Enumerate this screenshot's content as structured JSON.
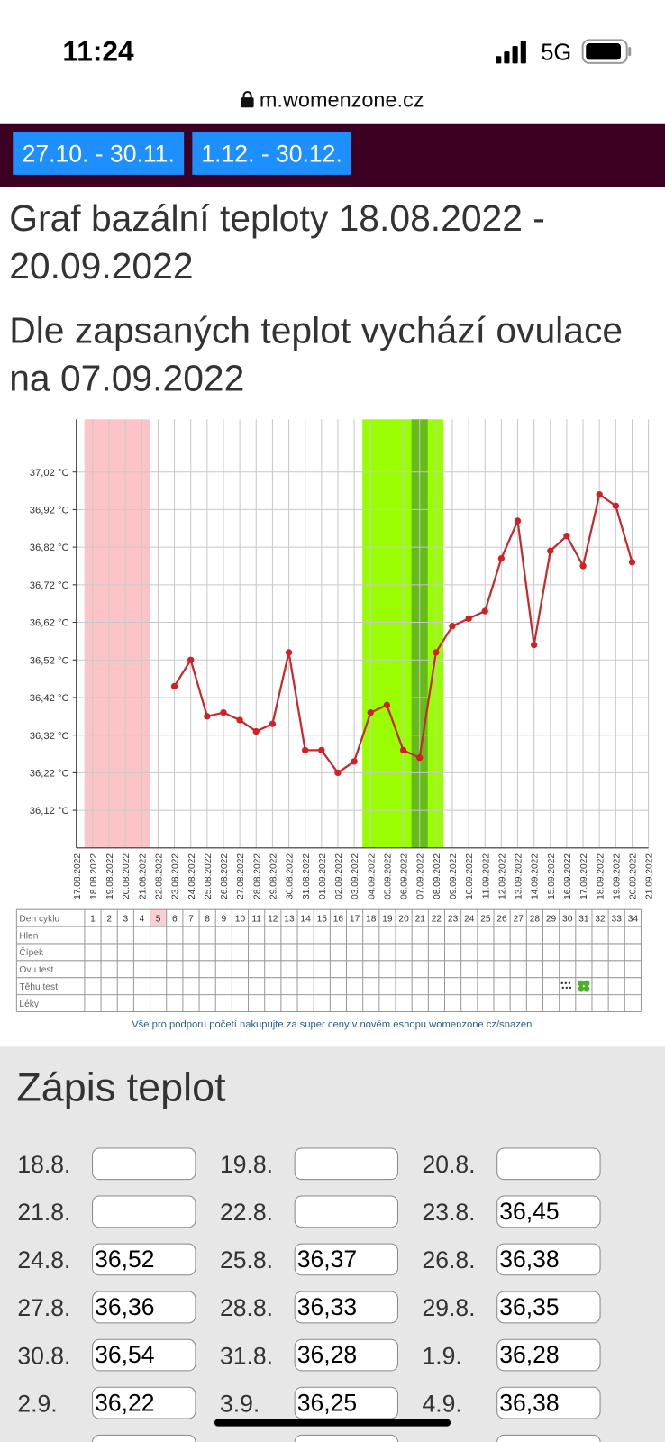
{
  "status": {
    "time": "11:24",
    "network": "5G"
  },
  "url": "m.womenzone.cz",
  "tabs": [
    "27.10. - 30.11.",
    "1.12. - 30.12."
  ],
  "title": "Graf bazální teploty 18.08.2022 - 20.09.2022",
  "subtitle": "Dle zapsaných teplot vychází ovulace na 07.09.2022",
  "chart_data": {
    "type": "line",
    "categories": [
      "17.08.2022",
      "18.08.2022",
      "19.08.2022",
      "20.08.2022",
      "21.08.2022",
      "22.08.2022",
      "23.08.2022",
      "24.08.2022",
      "25.08.2022",
      "26.08.2022",
      "27.08.2022",
      "28.08.2022",
      "29.08.2022",
      "30.08.2022",
      "31.08.2022",
      "01.09.2022",
      "02.09.2022",
      "03.09.2022",
      "04.09.2022",
      "05.09.2022",
      "06.09.2022",
      "07.09.2022",
      "08.09.2022",
      "09.09.2022",
      "10.09.2022",
      "11.09.2022",
      "12.09.2022",
      "13.09.2022",
      "14.09.2022",
      "15.09.2022",
      "16.09.2022",
      "17.09.2022",
      "18.09.2022",
      "19.09.2022",
      "20.09.2022",
      "21.09.2022"
    ],
    "values": [
      null,
      null,
      null,
      null,
      null,
      null,
      36.45,
      36.52,
      36.37,
      36.38,
      36.36,
      36.33,
      36.35,
      36.54,
      36.28,
      36.28,
      36.22,
      36.25,
      36.38,
      36.4,
      36.28,
      36.26,
      36.54,
      36.61,
      36.63,
      36.65,
      36.79,
      36.89,
      36.56,
      36.81,
      36.85,
      36.77,
      36.96,
      36.93,
      36.78,
      null
    ],
    "color": "#c62a2f",
    "ylim": [
      36.02,
      37.16
    ],
    "yticks": [
      {
        "value": 36.12,
        "label": "36,12 °C"
      },
      {
        "value": 36.22,
        "label": "36,22 °C"
      },
      {
        "value": 36.32,
        "label": "36,32 °C"
      },
      {
        "value": 36.42,
        "label": "36,42 °C"
      },
      {
        "value": 36.52,
        "label": "36,52 °C"
      },
      {
        "value": 36.62,
        "label": "36,62 °C"
      },
      {
        "value": 36.72,
        "label": "36,72 °C"
      },
      {
        "value": 36.82,
        "label": "36,82 °C"
      },
      {
        "value": 36.92,
        "label": "36,92 °C"
      },
      {
        "value": 37.02,
        "label": "37,02 °C"
      }
    ],
    "grid": true
  },
  "table": {
    "row_labels": [
      "Den cyklu",
      "Hlen",
      "Čípek",
      "Ovu test",
      "Těhu test",
      "Léky"
    ],
    "cycle_days": [
      1,
      2,
      3,
      4,
      5,
      6,
      7,
      8,
      9,
      10,
      11,
      12,
      13,
      14,
      15,
      16,
      17,
      18,
      19,
      20,
      21,
      22,
      23,
      24,
      25,
      26,
      27,
      28,
      29,
      30,
      31,
      32,
      33,
      34
    ]
  },
  "footer": "Vše pro podporu početí nakupujte za super ceny v novém eshopu womenzone.cz/snazeni",
  "form": {
    "title": "Zápis teplot",
    "entries": [
      {
        "date": "18.8."
      },
      {
        "date": "19.8."
      },
      {
        "date": "20.8."
      },
      {
        "date": "21.8."
      },
      {
        "date": "22.8."
      },
      {
        "date": "23.8.",
        "value": "36,45"
      },
      {
        "date": "24.8.",
        "value": "36,52"
      },
      {
        "date": "25.8.",
        "value": "36,37"
      },
      {
        "date": "26.8.",
        "value": "36,38"
      },
      {
        "date": "27.8.",
        "value": "36,36"
      },
      {
        "date": "28.8.",
        "value": "36,33"
      },
      {
        "date": "29.8.",
        "value": "36,35"
      },
      {
        "date": "30.8.",
        "value": "36,54"
      },
      {
        "date": "31.8.",
        "value": "36,28"
      },
      {
        "date": "1.9.",
        "value": "36,28"
      },
      {
        "date": "2.9.",
        "value": "36,22"
      },
      {
        "date": "3.9.",
        "value": "36,25"
      },
      {
        "date": "4.9.",
        "value": "36,38"
      }
    ]
  }
}
